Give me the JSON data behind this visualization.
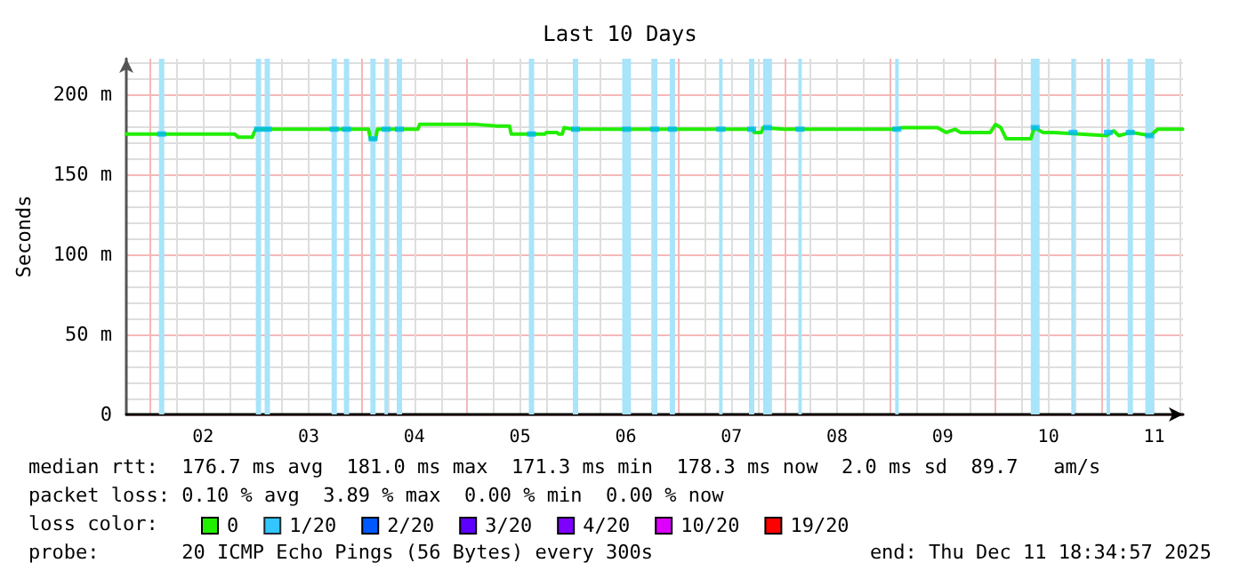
{
  "chart_data": {
    "type": "line",
    "title": "Last 10 Days",
    "ylabel": "Seconds",
    "xlim": [
      "2025-12-01T18:35",
      "2025-12-11T18:35"
    ],
    "xticks": [
      {
        "value": "2025-12-02T12:00",
        "label": "02"
      },
      {
        "value": "2025-12-03T12:00",
        "label": "03"
      },
      {
        "value": "2025-12-04T12:00",
        "label": "04"
      },
      {
        "value": "2025-12-05T12:00",
        "label": "05"
      },
      {
        "value": "2025-12-06T12:00",
        "label": "06"
      },
      {
        "value": "2025-12-07T12:00",
        "label": "07"
      },
      {
        "value": "2025-12-08T12:00",
        "label": "08"
      },
      {
        "value": "2025-12-09T12:00",
        "label": "09"
      },
      {
        "value": "2025-12-10T12:00",
        "label": "10"
      },
      {
        "value": "2025-12-11T12:00",
        "label": "11"
      }
    ],
    "ylim": [
      0,
      222
    ],
    "yticks": [
      0,
      {
        "value": 50,
        "label": "50 m"
      },
      {
        "value": 100,
        "label": "100 m"
      },
      {
        "value": 150,
        "label": "150 m"
      },
      {
        "value": 200,
        "label": "200 m"
      }
    ],
    "x": [
      "2025-12-01T18:35",
      "2025-12-02T19:12",
      "2025-12-02T20:00",
      "2025-12-02T23:12",
      "2025-12-02T23:36",
      "2025-12-03T00:00",
      "2025-12-04T01:36",
      "2025-12-04T02:00",
      "2025-12-04T03:12",
      "2025-12-04T03:36",
      "2025-12-04T12:48",
      "2025-12-04T13:12",
      "2025-12-05T02:00",
      "2025-12-05T06:48",
      "2025-12-05T09:36",
      "2025-12-05T10:00",
      "2025-12-05T17:36",
      "2025-12-05T18:00",
      "2025-12-05T20:24",
      "2025-12-05T20:48",
      "2025-12-05T21:36",
      "2025-12-05T22:00",
      "2025-12-06T00:00",
      "2025-12-07T16:48",
      "2025-12-07T17:12",
      "2025-12-07T18:48",
      "2025-12-07T19:12",
      "2025-12-08T00:00",
      "2025-12-09T01:12",
      "2025-12-09T02:48",
      "2025-12-09T10:48",
      "2025-12-09T12:48",
      "2025-12-09T14:48",
      "2025-12-09T16:00",
      "2025-12-09T22:48",
      "2025-12-10T00:00",
      "2025-12-10T01:12",
      "2025-12-10T02:24",
      "2025-12-10T08:00",
      "2025-12-10T08:48",
      "2025-12-10T10:48",
      "2025-12-10T13:12",
      "2025-12-11T01:12",
      "2025-12-11T02:48",
      "2025-12-11T04:00",
      "2025-12-11T06:48",
      "2025-12-11T11:12",
      "2025-12-11T12:48",
      "2025-12-11T18:30"
    ],
    "series": [
      {
        "name": "0",
        "color": "#22ee00",
        "values": [
          175,
          175,
          173,
          173,
          176,
          178,
          178,
          172,
          172,
          178,
          178,
          181,
          181,
          180,
          180,
          175,
          175,
          176,
          176,
          175,
          175,
          179,
          178,
          178,
          176,
          176,
          179,
          178,
          178,
          179,
          179,
          176,
          178,
          176,
          176,
          181,
          179,
          172,
          172,
          179,
          176,
          176,
          174,
          177,
          174,
          176,
          174,
          178,
          178
        ]
      },
      {
        "name": "1/20",
        "color": "#00b8ff",
        "type": "scatter",
        "marker": "square",
        "x": [
          "2025-12-02T02:36",
          "2025-12-03T00:36",
          "2025-12-03T02:36",
          "2025-12-03T17:48",
          "2025-12-03T20:36",
          "2025-12-04T02:36",
          "2025-12-04T05:36",
          "2025-12-04T08:36",
          "2025-12-05T14:36",
          "2025-12-06T00:36",
          "2025-12-06T12:12",
          "2025-12-06T18:36",
          "2025-12-06T22:36",
          "2025-12-07T09:36",
          "2025-12-07T16:36",
          "2025-12-07T20:12",
          "2025-12-08T03:36",
          "2025-12-09T01:36",
          "2025-12-10T09:00",
          "2025-12-10T17:36",
          "2025-12-11T01:36",
          "2025-12-11T06:36",
          "2025-12-11T11:00"
        ],
        "values": [
          175,
          178,
          178,
          178,
          178,
          172,
          178,
          178,
          175,
          178,
          178,
          178,
          178,
          178,
          178,
          179,
          178,
          178,
          179,
          176,
          176,
          176,
          174
        ]
      },
      {
        "name": "2/20",
        "color": "#0059ff",
        "values": [
          null,
          null,
          null,
          null,
          null,
          null,
          null,
          null,
          null,
          null,
          null,
          null,
          null,
          null,
          null,
          null,
          null,
          null,
          null,
          null,
          null,
          null,
          null,
          null,
          null,
          null,
          null,
          null,
          null,
          null,
          null,
          null,
          null,
          null,
          null,
          null,
          null,
          null,
          null,
          null,
          null,
          null,
          null,
          null,
          null,
          null,
          null,
          null,
          null
        ]
      },
      {
        "name": "3/20",
        "color": "#5e00ff",
        "values": [
          null,
          null,
          null,
          null,
          null,
          null,
          null,
          null,
          null,
          null,
          null,
          null,
          null,
          null,
          null,
          null,
          null,
          null,
          null,
          null,
          null,
          null,
          null,
          null,
          null,
          null,
          null,
          null,
          null,
          null,
          null,
          null,
          null,
          null,
          null,
          null,
          null,
          null,
          null,
          null,
          null,
          null,
          null,
          null,
          null,
          null,
          null,
          null,
          null
        ]
      },
      {
        "name": "4/20",
        "color": "#7e00ff",
        "values": [
          null,
          null,
          null,
          null,
          null,
          null,
          null,
          null,
          null,
          null,
          null,
          null,
          null,
          null,
          null,
          null,
          null,
          null,
          null,
          null,
          null,
          null,
          null,
          null,
          null,
          null,
          null,
          null,
          null,
          null,
          null,
          null,
          null,
          null,
          null,
          null,
          null,
          null,
          null,
          null,
          null,
          null,
          null,
          null,
          null,
          null,
          null,
          null,
          null
        ]
      },
      {
        "name": "10/20",
        "color": "#dd00ff",
        "values": [
          null,
          null,
          null,
          null,
          null,
          null,
          null,
          null,
          null,
          null,
          null,
          null,
          null,
          null,
          null,
          null,
          null,
          null,
          null,
          null,
          null,
          null,
          null,
          null,
          null,
          null,
          null,
          null,
          null,
          null,
          null,
          null,
          null,
          null,
          null,
          null,
          null,
          null,
          null,
          null,
          null,
          null,
          null,
          null,
          null,
          null,
          null,
          null,
          null
        ]
      },
      {
        "name": "19/20",
        "color": "#ff0000",
        "values": [
          null,
          null,
          null,
          null,
          null,
          null,
          null,
          null,
          null,
          null,
          null,
          null,
          null,
          null,
          null,
          null,
          null,
          null,
          null,
          null,
          null,
          null,
          null,
          null,
          null,
          null,
          null,
          null,
          null,
          null,
          null,
          null,
          null,
          null,
          null,
          null,
          null,
          null,
          null,
          null,
          null,
          null,
          null,
          null,
          null,
          null,
          null,
          null,
          null
        ]
      }
    ],
    "bands": [
      {
        "axis": "x",
        "from": "2025-12-02T02:00",
        "to": "2025-12-02T03:12",
        "color": "#a8e4fa"
      },
      {
        "axis": "x",
        "from": "2025-12-03T00:00",
        "to": "2025-12-03T01:12",
        "color": "#a8e4fa"
      },
      {
        "axis": "x",
        "from": "2025-12-03T02:00",
        "to": "2025-12-03T03:12",
        "color": "#a8e4fa"
      },
      {
        "axis": "x",
        "from": "2025-12-03T17:12",
        "to": "2025-12-03T18:24",
        "color": "#a8e4fa"
      },
      {
        "axis": "x",
        "from": "2025-12-03T20:00",
        "to": "2025-12-03T21:12",
        "color": "#a8e4fa"
      },
      {
        "axis": "x",
        "from": "2025-12-04T02:00",
        "to": "2025-12-04T03:12",
        "color": "#a8e4fa"
      },
      {
        "axis": "x",
        "from": "2025-12-04T05:12",
        "to": "2025-12-04T06:00",
        "color": "#a8e4fa"
      },
      {
        "axis": "x",
        "from": "2025-12-04T08:00",
        "to": "2025-12-04T09:12",
        "color": "#a8e4fa"
      },
      {
        "axis": "x",
        "from": "2025-12-05T14:00",
        "to": "2025-12-05T15:12",
        "color": "#a8e4fa"
      },
      {
        "axis": "x",
        "from": "2025-12-06T00:00",
        "to": "2025-12-06T01:12",
        "color": "#a8e4fa"
      },
      {
        "axis": "x",
        "from": "2025-12-06T11:12",
        "to": "2025-12-06T13:12",
        "color": "#a8e4fa"
      },
      {
        "axis": "x",
        "from": "2025-12-06T18:00",
        "to": "2025-12-06T19:12",
        "color": "#a8e4fa"
      },
      {
        "axis": "x",
        "from": "2025-12-06T22:00",
        "to": "2025-12-06T23:12",
        "color": "#a8e4fa"
      },
      {
        "axis": "x",
        "from": "2025-12-07T09:12",
        "to": "2025-12-07T10:00",
        "color": "#a8e4fa"
      },
      {
        "axis": "x",
        "from": "2025-12-07T16:00",
        "to": "2025-12-07T17:12",
        "color": "#a8e4fa"
      },
      {
        "axis": "x",
        "from": "2025-12-07T19:12",
        "to": "2025-12-07T21:12",
        "color": "#a8e4fa"
      },
      {
        "axis": "x",
        "from": "2025-12-08T03:12",
        "to": "2025-12-08T04:00",
        "color": "#a8e4fa"
      },
      {
        "axis": "x",
        "from": "2025-12-09T01:12",
        "to": "2025-12-09T02:00",
        "color": "#a8e4fa"
      },
      {
        "axis": "x",
        "from": "2025-12-10T08:00",
        "to": "2025-12-10T10:00",
        "color": "#a8e4fa"
      },
      {
        "axis": "x",
        "from": "2025-12-10T17:12",
        "to": "2025-12-10T18:00",
        "color": "#a8e4fa"
      },
      {
        "axis": "x",
        "from": "2025-12-11T01:12",
        "to": "2025-12-11T02:00",
        "color": "#a8e4fa"
      },
      {
        "axis": "x",
        "from": "2025-12-11T06:00",
        "to": "2025-12-11T07:12",
        "color": "#a8e4fa"
      },
      {
        "axis": "x",
        "from": "2025-12-11T10:00",
        "to": "2025-12-11T12:00",
        "color": "#a8e4fa"
      }
    ],
    "legend": "bottom",
    "legend_title": "loss color:",
    "grid": true,
    "marker": "none",
    "line_style": "solid",
    "annotations": [
      "median rtt:  176.7 ms avg  181.0 ms max  171.3 ms min  178.3 ms now  2.0 ms sd  89.7   am/s",
      "packet loss: 0.10 % avg  3.89 % max  0.00 % min  0.00 % now",
      "probe:       20 ICMP Echo Pings (56 Bytes) every 300s",
      "end: Thu Dec 11 18:34:57 2025"
    ]
  }
}
